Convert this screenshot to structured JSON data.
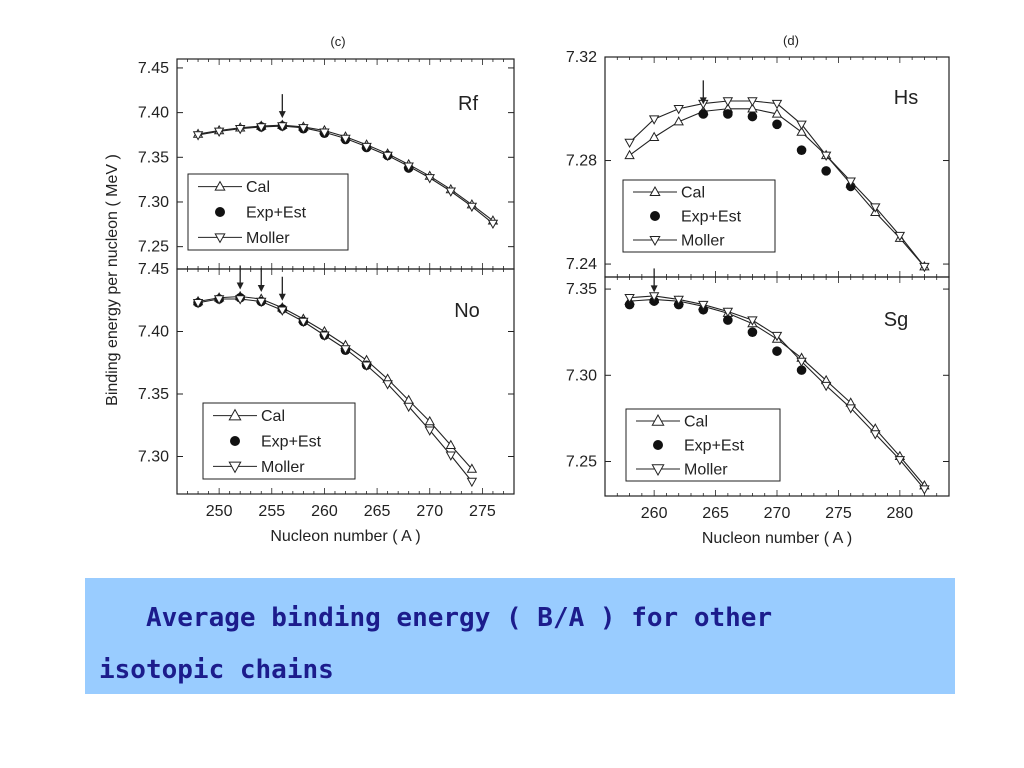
{
  "caption": {
    "line1": "   Average binding energy ( B/A ) for other",
    "line2": "isotopic chains"
  },
  "colors": {
    "caption_bg": "#99ccff",
    "caption_text": "#1c1c8c",
    "ink": "#222222"
  },
  "chart_data": [
    {
      "id": "rf",
      "type": "line",
      "label": "(c)",
      "nucleus": "Rf",
      "xlim": [
        246,
        278
      ],
      "ylim": [
        7.225,
        7.46
      ],
      "yticks": [
        "7.25",
        "7.30",
        "7.35",
        "7.40",
        "7.45"
      ],
      "arrows_at_A": [
        256
      ],
      "legend": [
        "Cal",
        "Exp+Est",
        "Moller"
      ],
      "series": [
        {
          "name": "Cal",
          "marker": "triangle-up",
          "x": [
            248,
            250,
            252,
            254,
            256,
            258,
            260,
            262,
            264,
            266,
            268,
            270,
            272,
            274,
            276
          ],
          "y": [
            7.376,
            7.38,
            7.383,
            7.385,
            7.386,
            7.384,
            7.38,
            7.373,
            7.364,
            7.354,
            7.342,
            7.329,
            7.314,
            7.297,
            7.279
          ]
        },
        {
          "name": "Exp+Est",
          "marker": "dot",
          "x": [
            254,
            256,
            258,
            260,
            262,
            264,
            266,
            268
          ],
          "y": [
            7.384,
            7.385,
            7.382,
            7.377,
            7.37,
            7.361,
            7.352,
            7.338
          ]
        },
        {
          "name": "Moller",
          "marker": "triangle-down",
          "x": [
            248,
            250,
            252,
            254,
            256,
            258,
            260,
            262,
            264,
            266,
            268,
            270,
            272,
            274,
            276
          ],
          "y": [
            7.375,
            7.379,
            7.382,
            7.384,
            7.385,
            7.383,
            7.378,
            7.371,
            7.362,
            7.352,
            7.34,
            7.327,
            7.312,
            7.295,
            7.276
          ]
        }
      ]
    },
    {
      "id": "no",
      "type": "line",
      "label": "",
      "nucleus": "No",
      "xlim": [
        246,
        278
      ],
      "ylim": [
        7.27,
        7.45
      ],
      "yticks": [
        "7.30",
        "7.35",
        "7.40",
        "7.45"
      ],
      "xticks": [
        "250",
        "255",
        "260",
        "265",
        "270",
        "275"
      ],
      "xlabel": "Nucleon number ( A )",
      "arrows_at_A": [
        252,
        254,
        256
      ],
      "legend": [
        "Cal",
        "Exp+Est",
        "Moller"
      ],
      "series": [
        {
          "name": "Cal",
          "marker": "triangle-up",
          "x": [
            248,
            250,
            252,
            254,
            256,
            258,
            260,
            262,
            264,
            266,
            268,
            270,
            272,
            274
          ],
          "y": [
            7.424,
            7.427,
            7.428,
            7.426,
            7.419,
            7.41,
            7.4,
            7.389,
            7.377,
            7.362,
            7.345,
            7.328,
            7.309,
            7.29
          ]
        },
        {
          "name": "Exp+Est",
          "marker": "dot",
          "x": [
            248,
            250,
            252,
            254,
            256,
            258,
            260,
            262,
            264
          ],
          "y": [
            7.423,
            7.426,
            7.427,
            7.424,
            7.418,
            7.408,
            7.397,
            7.385,
            7.373
          ]
        },
        {
          "name": "Moller",
          "marker": "triangle-down",
          "x": [
            248,
            250,
            252,
            254,
            256,
            258,
            260,
            262,
            264,
            266,
            268,
            270,
            272,
            274
          ],
          "y": [
            7.423,
            7.426,
            7.426,
            7.424,
            7.417,
            7.408,
            7.397,
            7.386,
            7.373,
            7.358,
            7.34,
            7.321,
            7.301,
            7.28
          ]
        }
      ]
    },
    {
      "id": "hs",
      "type": "line",
      "label": "(d)",
      "nucleus": "Hs",
      "xlim": [
        256,
        284
      ],
      "ylim": [
        7.235,
        7.32
      ],
      "yticks": [
        "7.24",
        "7.28",
        "7.32"
      ],
      "arrows_at_A": [
        264
      ],
      "legend": [
        "Cal",
        "Exp+Est",
        "Moller"
      ],
      "series": [
        {
          "name": "Cal",
          "marker": "triangle-up",
          "x": [
            258,
            260,
            262,
            264,
            266,
            268,
            270,
            272,
            274,
            276,
            278,
            280,
            282
          ],
          "y": [
            7.282,
            7.289,
            7.295,
            7.299,
            7.3,
            7.3,
            7.298,
            7.291,
            7.282,
            7.271,
            7.26,
            7.25,
            7.239
          ]
        },
        {
          "name": "Exp+Est",
          "marker": "dot",
          "x": [
            264,
            266,
            268,
            270,
            272,
            274,
            276
          ],
          "y": [
            7.298,
            7.298,
            7.297,
            7.294,
            7.284,
            7.276,
            7.27
          ]
        },
        {
          "name": "Moller",
          "marker": "triangle-down",
          "x": [
            258,
            260,
            262,
            264,
            266,
            268,
            270,
            272,
            274,
            276,
            278,
            280,
            282
          ],
          "y": [
            7.287,
            7.296,
            7.3,
            7.302,
            7.303,
            7.303,
            7.302,
            7.294,
            7.282,
            7.272,
            7.262,
            7.251,
            7.239
          ]
        }
      ]
    },
    {
      "id": "sg",
      "type": "line",
      "label": "",
      "nucleus": "Sg",
      "xlim": [
        256,
        284
      ],
      "ylim": [
        7.23,
        7.357
      ],
      "yticks": [
        "7.25",
        "7.30",
        "7.35"
      ],
      "xticks": [
        "260",
        "265",
        "270",
        "275",
        "280"
      ],
      "xlabel": "Nucleon number ( A )",
      "arrows_at_A": [
        260
      ],
      "legend": [
        "Cal",
        "Exp+Est",
        "Moller"
      ],
      "series": [
        {
          "name": "Cal",
          "marker": "triangle-up",
          "x": [
            258,
            260,
            262,
            264,
            266,
            268,
            270,
            272,
            274,
            276,
            278,
            280,
            282
          ],
          "y": [
            7.343,
            7.344,
            7.343,
            7.34,
            7.336,
            7.33,
            7.321,
            7.31,
            7.297,
            7.284,
            7.269,
            7.253,
            7.236
          ]
        },
        {
          "name": "Exp+Est",
          "marker": "dot",
          "x": [
            258,
            260,
            262,
            264,
            266,
            268,
            270,
            272
          ],
          "y": [
            7.341,
            7.343,
            7.341,
            7.338,
            7.332,
            7.325,
            7.314,
            7.303
          ]
        },
        {
          "name": "Moller",
          "marker": "triangle-down",
          "x": [
            258,
            260,
            262,
            264,
            266,
            268,
            270,
            272,
            274,
            276,
            278,
            280,
            282
          ],
          "y": [
            7.345,
            7.346,
            7.344,
            7.341,
            7.337,
            7.332,
            7.323,
            7.308,
            7.294,
            7.281,
            7.266,
            7.251,
            7.234
          ]
        }
      ]
    }
  ],
  "y_axis_label": "Binding energy per nucleon ( MeV )"
}
